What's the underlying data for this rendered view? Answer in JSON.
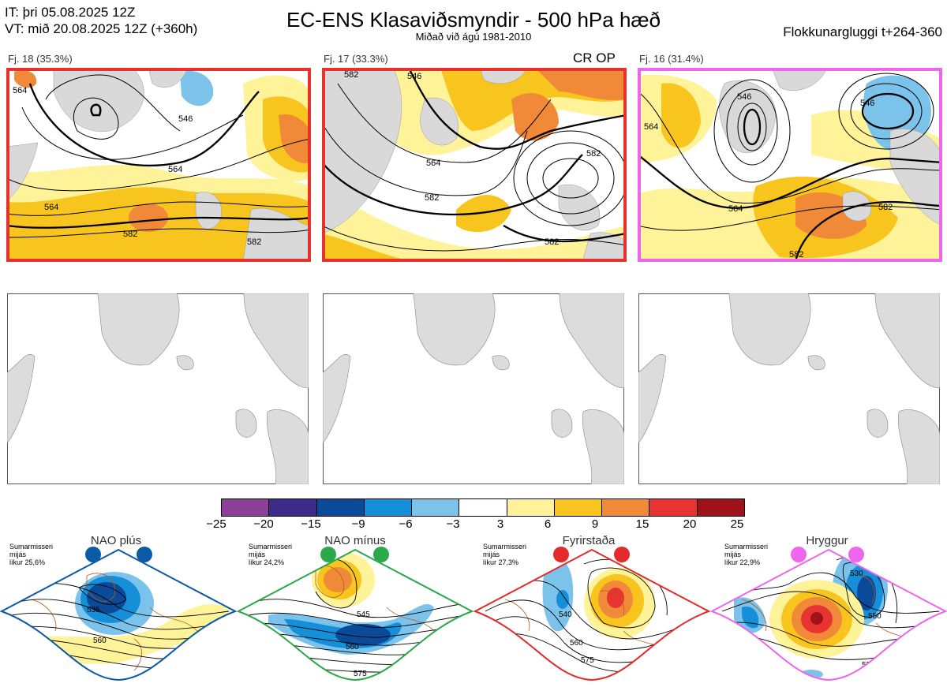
{
  "header": {
    "it_line": "IT: þri 05.08.2025 12Z",
    "vt_line": "VT: mið 20.08.2025 12Z  (+360h)",
    "title": "EC-ENS Klasaviðsmyndir - 500 hPa hæð",
    "subtitle": "Miðað við ágú 1981-2010",
    "window": "Flokkunargluggi t+264-360"
  },
  "clusters": [
    {
      "label": "Fj. 18 (35.3%)",
      "frame_color": "#e8302c",
      "contours": [
        "564",
        "546",
        "564",
        "564",
        "582",
        "582"
      ]
    },
    {
      "label": "Fj. 17 (33.3%)",
      "frame_color": "#e8302c",
      "tag": "CR OP",
      "contours": [
        "582",
        "546",
        "564",
        "582",
        "582",
        "582"
      ]
    },
    {
      "label": "Fj. 16 (31.4%)",
      "frame_color": "#ee66ee",
      "contours": [
        "546",
        "546",
        "564",
        "564",
        "582",
        "582"
      ]
    }
  ],
  "colorbar": {
    "ticks": [
      "−25",
      "−20",
      "−15",
      "−9",
      "−6",
      "−3",
      "3",
      "6",
      "9",
      "15",
      "20",
      "25"
    ],
    "colors": [
      "#8e3f98",
      "#3d2a8a",
      "#0a4a99",
      "#1590d8",
      "#7cc3ec",
      "#ffffff",
      "#fff39a",
      "#f7c51e",
      "#f08a38",
      "#e73431",
      "#a0121a"
    ]
  },
  "regimes": [
    {
      "name": "NAO plús",
      "note": [
        "Sumarmisseri",
        "mijás",
        "líkur 25,6%"
      ],
      "color": "#0a5aa8",
      "contours": [
        "535",
        "560"
      ]
    },
    {
      "name": "NAO mínus",
      "note": [
        "Sumarmisseri",
        "mijás",
        "líkur 24,2%"
      ],
      "color": "#2aa84a",
      "contours": [
        "545",
        "560",
        "575"
      ]
    },
    {
      "name": "Fyrirstaða",
      "note": [
        "Sumarmisseri",
        "mijás",
        "líkur 27,3%"
      ],
      "color": "#e42a2a",
      "contours": [
        "540",
        "560",
        "575"
      ]
    },
    {
      "name": "Hryggur",
      "note": [
        "Sumarmisseri",
        "mijás",
        "líkur 22,9%"
      ],
      "color": "#ee66ee",
      "contours": [
        "530",
        "550",
        "575"
      ]
    }
  ]
}
